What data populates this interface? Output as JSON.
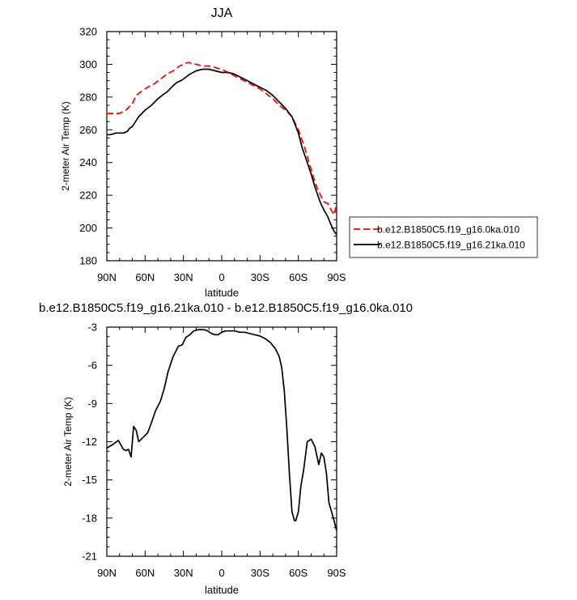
{
  "chart_data": [
    {
      "type": "line",
      "title": "JJA",
      "xlabel": "latitude",
      "ylabel": "2-meter Air Temp (K)",
      "xlim": [
        90,
        -90
      ],
      "ylim": [
        180,
        320
      ],
      "xticks": [
        90,
        60,
        30,
        0,
        -30,
        -60,
        -90
      ],
      "xtick_labels": [
        "90N",
        "60N",
        "30N",
        "0",
        "30S",
        "60S",
        "90S"
      ],
      "yticks": [
        180,
        200,
        220,
        240,
        260,
        280,
        300,
        320
      ],
      "yticklabels": [
        "180",
        "200",
        "220",
        "240",
        "260",
        "280",
        "300",
        "320"
      ],
      "grid": false,
      "legend": "right",
      "series": [
        {
          "name": "b.e12.B1850C5.f19_g16.0ka.010",
          "color": "#ff0000",
          "dash": "dashed",
          "x": [
            90,
            85,
            80,
            75,
            70,
            67,
            62,
            58,
            53,
            48,
            43,
            38,
            33,
            30,
            27,
            25,
            23,
            20,
            15,
            10,
            5,
            0,
            -5,
            -10,
            -15,
            -20,
            -25,
            -30,
            -35,
            -40,
            -45,
            -50,
            -55,
            -60,
            -65,
            -68,
            -70,
            -73,
            -75,
            -78,
            -80,
            -83,
            -85,
            -88,
            -90
          ],
          "y": [
            270,
            270,
            270,
            272,
            276,
            281,
            284,
            286,
            288,
            291,
            294,
            296,
            299,
            300,
            301,
            301,
            300,
            300,
            299,
            299,
            298,
            297,
            295,
            293,
            291,
            289,
            287,
            285,
            282,
            279,
            275,
            272,
            268,
            260,
            249,
            241,
            236,
            228,
            224,
            219,
            216,
            215,
            212,
            208,
            215
          ]
        },
        {
          "name": "b.e12.B1850C5.f19_g16.21ka.010",
          "color": "#000000",
          "dash": "solid",
          "x": [
            90,
            87,
            83,
            80,
            77,
            74,
            72,
            70,
            65,
            60,
            55,
            50,
            45,
            43,
            38,
            35,
            32,
            30,
            25,
            20,
            15,
            10,
            5,
            0,
            -5,
            -10,
            -15,
            -20,
            -25,
            -30,
            -35,
            -40,
            -45,
            -50,
            -55,
            -58,
            -60,
            -63,
            -67,
            -70,
            -73,
            -77,
            -80,
            -83,
            -85,
            -88,
            -90
          ],
          "y": [
            257,
            257,
            258,
            258,
            258,
            259,
            261,
            262,
            268,
            272,
            275,
            279,
            282,
            283,
            287,
            289,
            290,
            291,
            294,
            296,
            297,
            297,
            296,
            295,
            295,
            294,
            292,
            290,
            288,
            286,
            284,
            281,
            277,
            273,
            268,
            262,
            258,
            249,
            240,
            233,
            225,
            216,
            211,
            207,
            203,
            198,
            196
          ]
        }
      ]
    },
    {
      "type": "line",
      "title": "b.e12.B1850C5.f19_g16.21ka.010 - b.e12.B1850C5.f19_g16.0ka.010",
      "xlabel": "latitude",
      "ylabel": "2-meter Air Temp (K)",
      "xlim": [
        90,
        -90
      ],
      "ylim": [
        -21,
        -3
      ],
      "xticks": [
        90,
        60,
        30,
        0,
        -30,
        -60,
        -90
      ],
      "xtick_labels": [
        "90N",
        "60N",
        "30N",
        "0",
        "30S",
        "60S",
        "90S"
      ],
      "yticks": [
        -21,
        -18,
        -15,
        -12,
        -9,
        -6,
        -3
      ],
      "yticklabels": [
        "-21",
        "-18",
        "-15",
        "-12",
        "-9",
        "-6",
        "-3"
      ],
      "grid": false,
      "series": [
        {
          "color": "#000000",
          "dash": "solid",
          "x": [
            90,
            85,
            81,
            77,
            75,
            73,
            71,
            69,
            67,
            65,
            62,
            58,
            55,
            52,
            48,
            45,
            42,
            38,
            34,
            31,
            28,
            25,
            22,
            18,
            14,
            11,
            8,
            5,
            3,
            0,
            -3,
            -6,
            -10,
            -14,
            -18,
            -22,
            -26,
            -30,
            -34,
            -38,
            -42,
            -45,
            -47,
            -49,
            -51,
            -53,
            -55,
            -57,
            -58,
            -60,
            -62,
            -64,
            -67,
            -70,
            -73,
            -76,
            -78,
            -80,
            -82,
            -84,
            -86,
            -88,
            -90
          ],
          "y": [
            -12.5,
            -12.2,
            -11.9,
            -12.6,
            -12.7,
            -12.6,
            -13.2,
            -10.8,
            -11.1,
            -12.0,
            -11.7,
            -11.3,
            -10.5,
            -9.6,
            -8.8,
            -7.8,
            -6.5,
            -5.3,
            -4.5,
            -4.4,
            -3.8,
            -3.6,
            -3.3,
            -3.2,
            -3.2,
            -3.3,
            -3.5,
            -3.6,
            -3.6,
            -3.4,
            -3.3,
            -3.3,
            -3.3,
            -3.4,
            -3.4,
            -3.5,
            -3.6,
            -3.7,
            -3.9,
            -4.2,
            -4.7,
            -5.3,
            -6.2,
            -8.0,
            -11.0,
            -14.5,
            -17.5,
            -18.2,
            -18.2,
            -17.5,
            -15.5,
            -14.3,
            -12.0,
            -11.8,
            -12.4,
            -13.8,
            -12.9,
            -13.2,
            -14.5,
            -16.8,
            -17.5,
            -18.2,
            -19.0
          ]
        }
      ]
    }
  ]
}
